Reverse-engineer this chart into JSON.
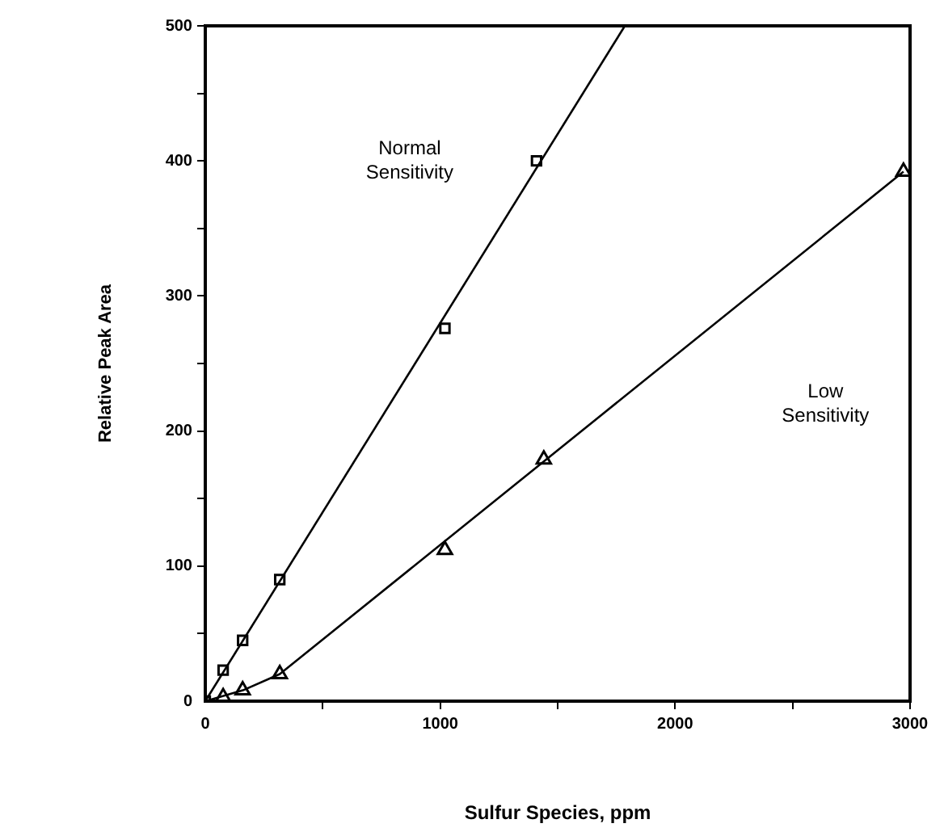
{
  "chart_data": {
    "type": "scatter",
    "xlabel": "Sulfur Species, ppm",
    "ylabel": "Relative Peak Area",
    "xlim": [
      0,
      3000
    ],
    "ylim": [
      0,
      500
    ],
    "xticks": [
      0,
      {
        "value": 500,
        "label": null
      },
      1000,
      {
        "value": 1500,
        "label": null
      },
      2000,
      {
        "value": 2500,
        "label": null
      },
      3000
    ],
    "yticks": [
      0,
      {
        "value": 50,
        "label": null
      },
      100,
      {
        "value": 150,
        "label": null
      },
      200,
      {
        "value": 250,
        "label": null
      },
      300,
      {
        "value": 350,
        "label": null
      },
      400,
      {
        "value": 450,
        "label": null
      },
      500
    ],
    "grid": false,
    "legend": false,
    "series": [
      {
        "type": "line",
        "color": "#000000",
        "marker": "none",
        "line_style": "solid",
        "x": [
          0,
          1786
        ],
        "values": [
          0,
          500
        ]
      },
      {
        "type": "line",
        "color": "#000000",
        "marker": "none",
        "line_style": "solid",
        "x": [
          0,
          160,
          317,
          2972
        ],
        "values": [
          0,
          8,
          20,
          392
        ]
      },
      {
        "color": "#000000",
        "marker": "square",
        "x": [
          0,
          76,
          159,
          317,
          1020,
          1410
        ],
        "values": [
          0,
          23,
          45,
          90,
          276,
          400
        ]
      },
      {
        "color": "#000000",
        "marker": "triangle",
        "x": [
          76,
          159,
          317,
          1020,
          1441,
          2972
        ],
        "values": [
          3,
          8,
          20,
          112,
          179,
          392
        ]
      }
    ],
    "annotations": [
      "Normal\nSensitivity",
      "Low\nSensitivity"
    ]
  }
}
